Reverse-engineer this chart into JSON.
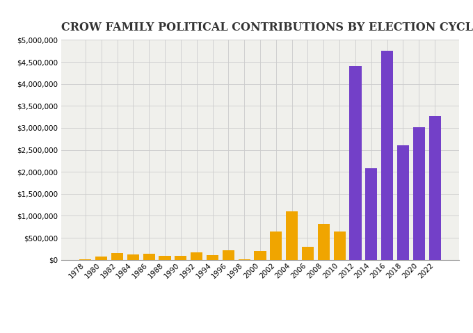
{
  "title": "CROW FAMILY POLITICAL CONTRIBUTIONS BY ELECTION CYCLE",
  "categories": [
    1978,
    1980,
    1982,
    1984,
    1986,
    1988,
    1990,
    1992,
    1994,
    1996,
    1998,
    2000,
    2002,
    2004,
    2006,
    2008,
    2010,
    2012,
    2014,
    2016,
    2018,
    2020,
    2022
  ],
  "values": [
    5000,
    80000,
    155000,
    120000,
    130000,
    95000,
    90000,
    175000,
    100000,
    215000,
    15000,
    200000,
    650000,
    1100000,
    300000,
    820000,
    650000,
    4400000,
    2080000,
    4750000,
    2600000,
    3020000,
    3270000
  ],
  "colors": [
    "#F0A500",
    "#F0A500",
    "#F0A500",
    "#F0A500",
    "#F0A500",
    "#F0A500",
    "#F0A500",
    "#F0A500",
    "#F0A500",
    "#F0A500",
    "#F0A500",
    "#F0A500",
    "#F0A500",
    "#F0A500",
    "#F0A500",
    "#F0A500",
    "#F0A500",
    "#7340C8",
    "#7340C8",
    "#7340C8",
    "#7340C8",
    "#7340C8",
    "#7340C8"
  ],
  "ylim": [
    0,
    5000000
  ],
  "yticks": [
    0,
    500000,
    1000000,
    1500000,
    2000000,
    2500000,
    3000000,
    3500000,
    4000000,
    4500000,
    5000000
  ],
  "background_color": "#FFFFFF",
  "plot_bg_color": "#F0F0EC",
  "grid_color": "#CCCCCC",
  "title_fontsize": 11.5,
  "bar_width": 0.75
}
